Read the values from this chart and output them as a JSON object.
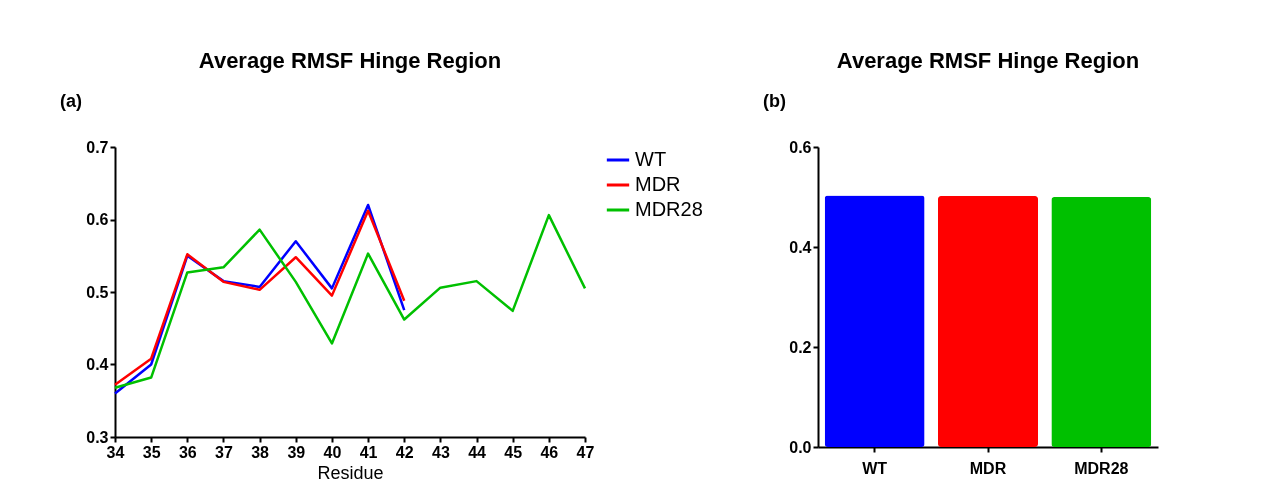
{
  "chart_data": [
    {
      "type": "line",
      "title": "Average RMSF Hinge Region",
      "xlabel": "Residue",
      "annotations": [
        "(a)"
      ],
      "xlim": [
        34,
        47
      ],
      "xticks": [
        34,
        35,
        36,
        37,
        38,
        39,
        40,
        41,
        42,
        43,
        44,
        45,
        46,
        47
      ],
      "ylim": [
        0.3,
        0.7
      ],
      "yticks": [
        0.3,
        0.4,
        0.5,
        0.6,
        0.7
      ],
      "grid": false,
      "legend": "right",
      "marker": "none",
      "line_style": "solid",
      "series": [
        {
          "name": "WT",
          "color": "#0000ff",
          "x": [
            34,
            35,
            36,
            37,
            38,
            39,
            40,
            41,
            42
          ],
          "values": [
            0.36,
            0.4,
            0.55,
            0.515,
            0.507,
            0.57,
            0.505,
            0.62,
            0.475
          ]
        },
        {
          "name": "MDR",
          "color": "#ff0000",
          "x": [
            34,
            35,
            36,
            37,
            38,
            39,
            40,
            41,
            42
          ],
          "values": [
            0.372,
            0.408,
            0.552,
            0.514,
            0.503,
            0.548,
            0.495,
            0.612,
            0.488
          ]
        },
        {
          "name": "MDR28",
          "color": "#00c000",
          "x": [
            34,
            35,
            36,
            37,
            38,
            39,
            40,
            41,
            42,
            43,
            44,
            45,
            46,
            47
          ],
          "values": [
            0.368,
            0.382,
            0.527,
            0.534,
            0.586,
            0.514,
            0.429,
            0.553,
            0.462,
            0.506,
            0.515,
            0.474,
            0.606,
            0.505
          ]
        }
      ]
    },
    {
      "type": "bar",
      "title": "Average RMSF Hinge Region",
      "annotations": [
        "(b)"
      ],
      "categories": [
        "WT",
        "MDR",
        "MDR28"
      ],
      "values": [
        0.503,
        0.502,
        0.5
      ],
      "colors": [
        "#0000ff",
        "#ff0000",
        "#00c000"
      ],
      "ylim": [
        0,
        0.6
      ],
      "yticks": [
        {
          "value": 0,
          "label": "0.0"
        },
        0.2,
        0.4,
        0.6
      ],
      "grid": false
    }
  ]
}
